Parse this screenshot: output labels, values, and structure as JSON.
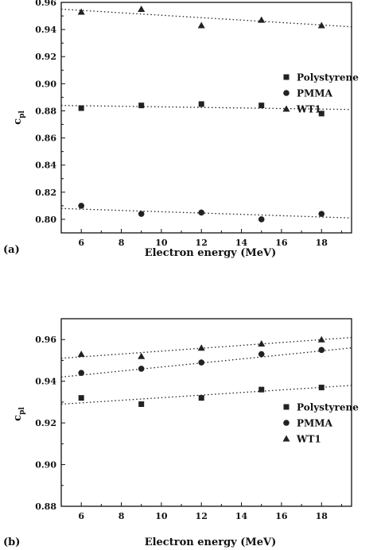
{
  "chart_data": [
    {
      "type": "scatter",
      "panel_label": "(a)",
      "xlabel": "Electron energy (MeV)",
      "ylabel_main": "c",
      "ylabel_sub": "pl",
      "xlim": [
        5,
        19.5
      ],
      "ylim": [
        0.79,
        0.96
      ],
      "xticks": [
        6,
        8,
        10,
        12,
        14,
        16,
        18
      ],
      "yticks": [
        0.8,
        0.82,
        0.84,
        0.86,
        0.88,
        0.9,
        0.92,
        0.94,
        0.96
      ],
      "ytick_labels": [
        "0.80",
        "0.82",
        "0.84",
        "0.86",
        "0.88",
        "0.90",
        "0.92",
        "0.94",
        "0.96"
      ],
      "legend_position": "right-middle",
      "series": [
        {
          "name": "Polystyrene",
          "marker": "square",
          "x": [
            6,
            9,
            12,
            15,
            18
          ],
          "y": [
            0.882,
            0.884,
            0.885,
            0.884,
            0.878
          ],
          "fit": [
            [
              5,
              0.884
            ],
            [
              19.5,
              0.881
            ]
          ]
        },
        {
          "name": "PMMA",
          "marker": "circle",
          "x": [
            6,
            9,
            12,
            15,
            18
          ],
          "y": [
            0.81,
            0.804,
            0.805,
            0.8,
            0.804
          ],
          "fit": [
            [
              5,
              0.808
            ],
            [
              19.5,
              0.801
            ]
          ]
        },
        {
          "name": "WT1",
          "marker": "triangle",
          "x": [
            6,
            9,
            12,
            15,
            18
          ],
          "y": [
            0.953,
            0.955,
            0.943,
            0.947,
            0.943
          ],
          "fit": [
            [
              5,
              0.955
            ],
            [
              19.5,
              0.942
            ]
          ]
        }
      ]
    },
    {
      "type": "scatter",
      "panel_label": "(b)",
      "xlabel": "Electron energy (MeV)",
      "ylabel_main": "c",
      "ylabel_sub": "pl",
      "xlim": [
        5,
        19.5
      ],
      "ylim": [
        0.88,
        0.97
      ],
      "xticks": [
        6,
        8,
        10,
        12,
        14,
        16,
        18
      ],
      "yticks": [
        0.88,
        0.9,
        0.92,
        0.94,
        0.96
      ],
      "ytick_labels": [
        "0.88",
        "0.90",
        "0.92",
        "0.94",
        "0.96"
      ],
      "legend_position": "right-middle",
      "series": [
        {
          "name": "Polystyrene",
          "marker": "square",
          "x": [
            6,
            9,
            12,
            15,
            18
          ],
          "y": [
            0.932,
            0.929,
            0.932,
            0.936,
            0.937
          ],
          "fit": [
            [
              5,
              0.929
            ],
            [
              19.5,
              0.938
            ]
          ]
        },
        {
          "name": "PMMA",
          "marker": "circle",
          "x": [
            6,
            9,
            12,
            15,
            18
          ],
          "y": [
            0.944,
            0.946,
            0.949,
            0.953,
            0.955
          ],
          "fit": [
            [
              5,
              0.942
            ],
            [
              19.5,
              0.956
            ]
          ]
        },
        {
          "name": "WT1",
          "marker": "triangle",
          "x": [
            6,
            9,
            12,
            15,
            18
          ],
          "y": [
            0.953,
            0.952,
            0.956,
            0.958,
            0.96
          ],
          "fit": [
            [
              5,
              0.951
            ],
            [
              19.5,
              0.961
            ]
          ]
        }
      ]
    }
  ]
}
